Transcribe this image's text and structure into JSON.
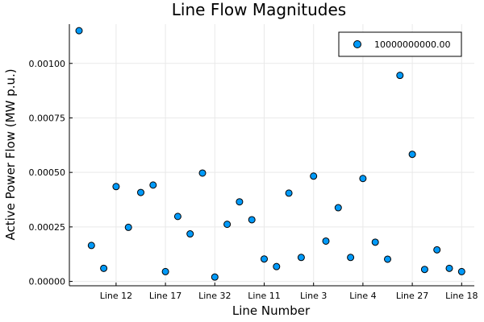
{
  "chart_data": {
    "type": "scatter",
    "title": "Line Flow Magnitudes",
    "xlabel": "Line Number",
    "ylabel": "Active Power Flow (MW p.u.)",
    "x_tick_labels": [
      "Line 12",
      "Line 17",
      "Line 32",
      "Line 11",
      "Line 3",
      "Line 4",
      "Line 27",
      "Line 18"
    ],
    "y_tick_labels": [
      "0.00000",
      "0.00025",
      "0.00050",
      "0.00075",
      "0.00100"
    ],
    "ylim": [
      -2e-05,
      0.00118
    ],
    "grid": true,
    "legend_position": "top-right",
    "marker_color": "#009af9",
    "series": [
      {
        "name": "10000000000.00",
        "values": [
          0.00115,
          0.000165,
          6e-05,
          0.000435,
          0.000248,
          0.000408,
          0.000442,
          4.5e-05,
          0.000298,
          0.000218,
          0.000497,
          2e-05,
          0.000262,
          0.000365,
          0.000283,
          0.000103,
          6.8e-05,
          0.000405,
          0.00011,
          0.000483,
          0.000185,
          0.000338,
          0.00011,
          0.000472,
          0.00018,
          0.000102,
          0.000945,
          0.000583,
          5.5e-05,
          0.000145,
          6e-05,
          4.5e-05
        ]
      }
    ]
  }
}
